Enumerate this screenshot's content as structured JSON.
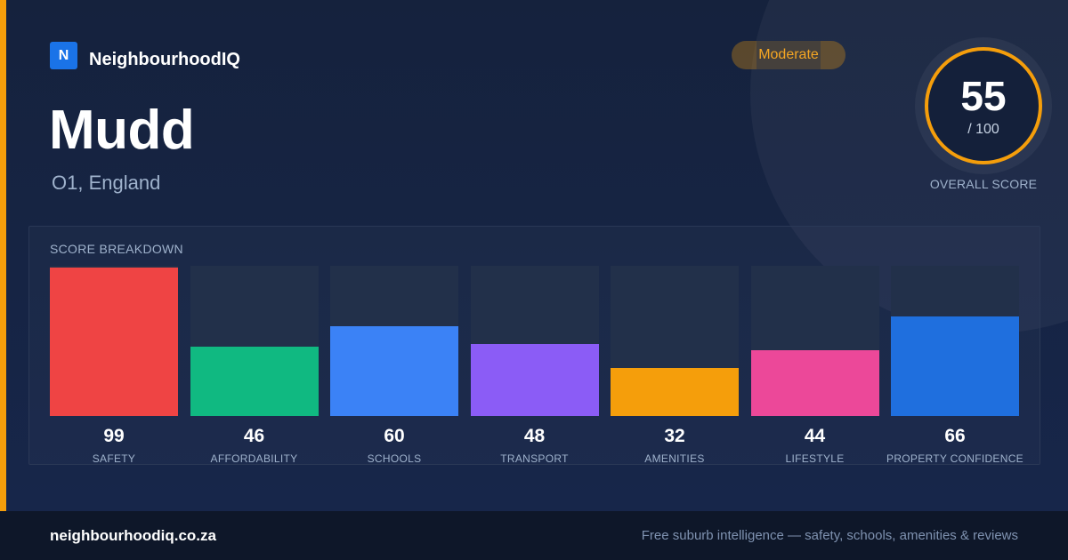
{
  "brand": {
    "logo_letter": "N",
    "name": "NeighbourhoodIQ",
    "color": "#1a73e8"
  },
  "suburb": {
    "name": "Mudd",
    "region": "O1, England"
  },
  "rating": {
    "label": "Moderate",
    "color": "#f59e0b"
  },
  "overall": {
    "score": "55",
    "max": "/ 100",
    "caption": "OVERALL SCORE"
  },
  "breakdown": {
    "title": "SCORE BREAKDOWN",
    "scale_max": 100,
    "items": [
      {
        "label": "SAFETY",
        "value": 99,
        "color": "#ef4444"
      },
      {
        "label": "AFFORDABILITY",
        "value": 46,
        "color": "#10b981"
      },
      {
        "label": "SCHOOLS",
        "value": 60,
        "color": "#3b82f6"
      },
      {
        "label": "TRANSPORT",
        "value": 48,
        "color": "#8b5cf6"
      },
      {
        "label": "AMENITIES",
        "value": 32,
        "color": "#f59e0b"
      },
      {
        "label": "LIFESTYLE",
        "value": 44,
        "color": "#ec4899"
      },
      {
        "label": "PROPERTY CONFIDENCE",
        "value": 66,
        "color": "#1f6fde"
      }
    ]
  },
  "footer": {
    "url": "neighbourhoodiq.co.za",
    "tagline": "Free suburb intelligence — safety, schools, amenities & reviews"
  }
}
